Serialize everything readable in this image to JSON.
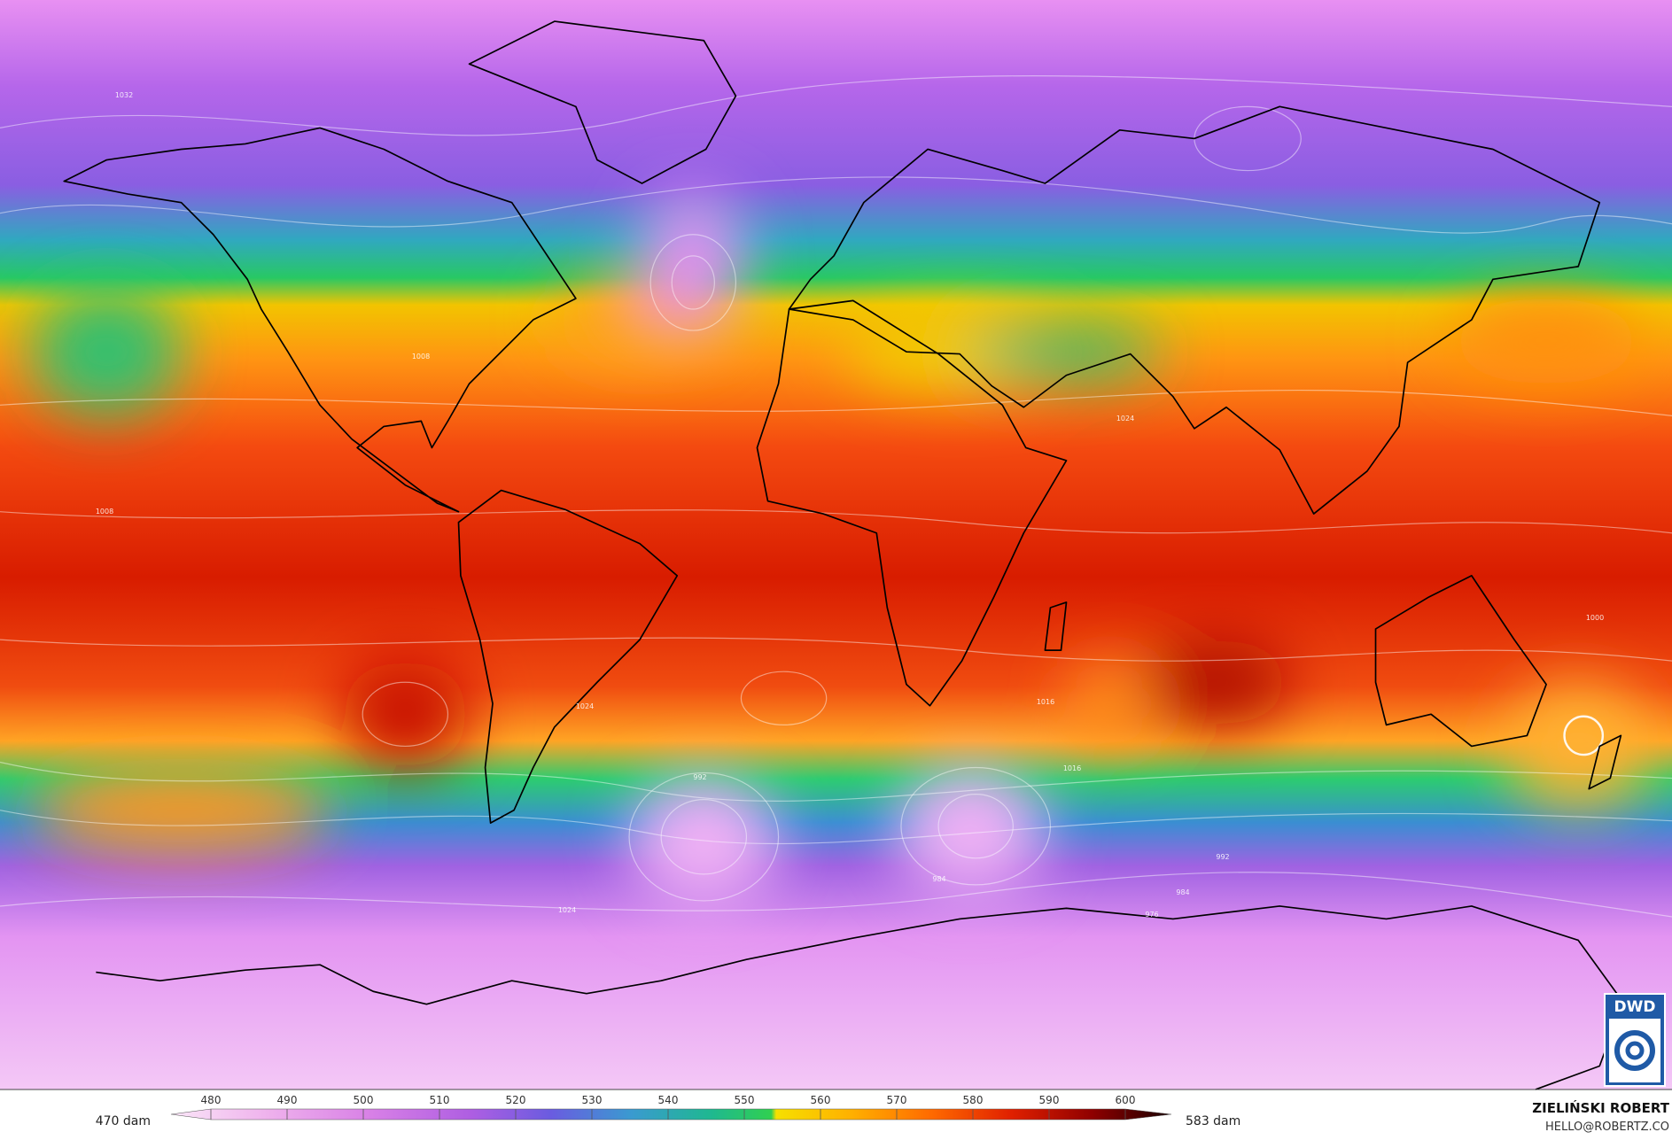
{
  "colorbar": {
    "min_label": "470 dam",
    "max_label": "583 dam",
    "ticks": [
      480,
      490,
      500,
      510,
      520,
      530,
      540,
      550,
      560,
      570,
      580,
      590,
      600
    ]
  },
  "credit": {
    "name": "ZIELIŃSKI ROBERT",
    "email": "HELLO@ROBERTZ.CO"
  },
  "logo": "DWD",
  "contour_labels": [
    "1032",
    "1024",
    "1016",
    "1008",
    "1000",
    "992",
    "984",
    "976",
    "1024",
    "1016",
    "1008",
    "1024",
    "992",
    "984"
  ]
}
